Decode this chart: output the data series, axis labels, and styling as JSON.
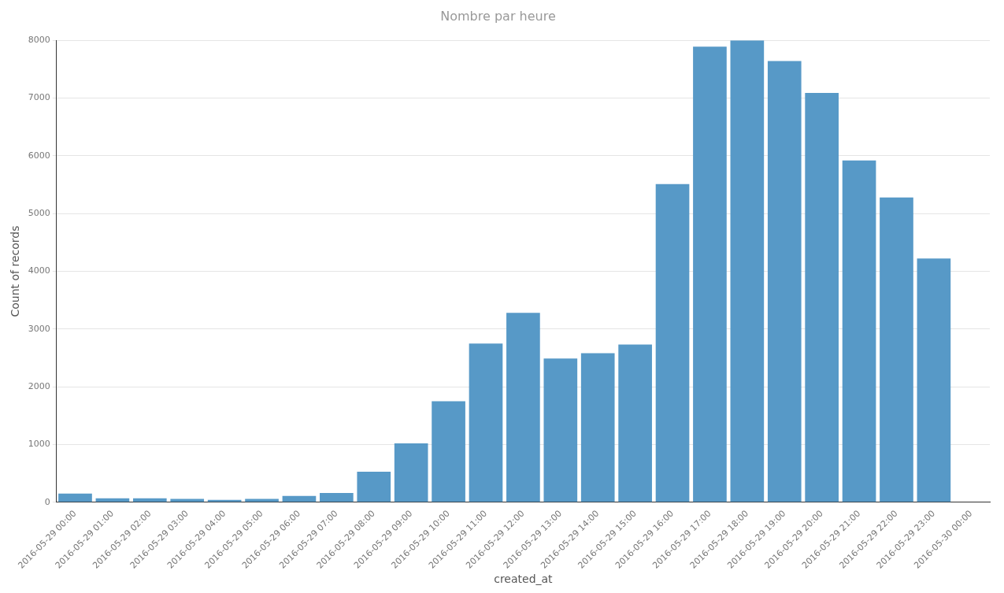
{
  "chart_data": {
    "type": "bar",
    "title": "Nombre par heure",
    "xlabel": "created_at",
    "ylabel": "Count of records",
    "categories": [
      "2016-05-29 00:00",
      "2016-05-29 01:00",
      "2016-05-29 02:00",
      "2016-05-29 03:00",
      "2016-05-29 04:00",
      "2016-05-29 05:00",
      "2016-05-29 06:00",
      "2016-05-29 07:00",
      "2016-05-29 08:00",
      "2016-05-29 09:00",
      "2016-05-29 10:00",
      "2016-05-29 11:00",
      "2016-05-29 12:00",
      "2016-05-29 13:00",
      "2016-05-29 14:00",
      "2016-05-29 15:00",
      "2016-05-29 16:00",
      "2016-05-29 17:00",
      "2016-05-29 18:00",
      "2016-05-29 19:00",
      "2016-05-29 20:00",
      "2016-05-29 21:00",
      "2016-05-29 22:00",
      "2016-05-29 23:00",
      "2016-05-30 00:00"
    ],
    "values": [
      150,
      70,
      70,
      60,
      40,
      60,
      110,
      160,
      530,
      1020,
      1750,
      2750,
      3280,
      2490,
      2580,
      2730,
      5510,
      7890,
      8000,
      7640,
      7090,
      5920,
      5280,
      4220,
      null
    ],
    "color": "#5799c7",
    "ylim": [
      0,
      8000
    ],
    "yticks": [
      0,
      1000,
      2000,
      3000,
      4000,
      5000,
      6000,
      7000,
      8000
    ],
    "grid": "y"
  }
}
